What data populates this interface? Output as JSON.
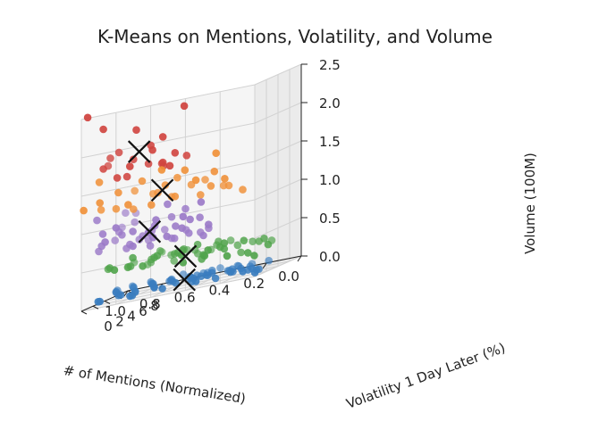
{
  "chart_data": {
    "type": "scatter",
    "projection": "3d",
    "title": "K-Means on Mentions, Volatility, and Volume",
    "xlabel": "# of Mentions (Normalized)",
    "ylabel": "Volatility 1 Day Later (%)",
    "zlabel": "Volume (100M)",
    "xlim": [
      0.0,
      1.0
    ],
    "ylim": [
      0,
      8
    ],
    "zlim": [
      0.0,
      2.5
    ],
    "x_ticks": [
      "0.0",
      "0.2",
      "0.4",
      "0.6",
      "0.8",
      "1.0"
    ],
    "y_ticks": [
      "0",
      "2",
      "4",
      "6",
      "8"
    ],
    "z_ticks": [
      "0.0",
      "0.5",
      "1.0",
      "1.5",
      "2.0",
      "2.5"
    ],
    "grid": true,
    "cluster_colors": [
      "#3a7dbf",
      "#4fa34a",
      "#9b7ac8",
      "#f0913a",
      "#d0443f"
    ],
    "series": [
      {
        "color": "#3a7dbf",
        "points": [
          [
            0.02,
            0.6,
            0.04
          ],
          [
            0.05,
            1.8,
            0.05
          ],
          [
            0.08,
            3.1,
            0.03
          ],
          [
            0.1,
            0.9,
            0.08
          ],
          [
            0.12,
            2.4,
            0.06
          ],
          [
            0.15,
            4.0,
            0.04
          ],
          [
            0.18,
            1.2,
            0.1
          ],
          [
            0.2,
            5.2,
            0.05
          ],
          [
            0.22,
            2.8,
            0.07
          ],
          [
            0.25,
            3.6,
            0.09
          ],
          [
            0.28,
            1.6,
            0.05
          ],
          [
            0.3,
            4.6,
            0.06
          ],
          [
            0.32,
            2.2,
            0.12
          ],
          [
            0.35,
            5.8,
            0.04
          ],
          [
            0.38,
            3.2,
            0.08
          ],
          [
            0.4,
            1.4,
            0.11
          ],
          [
            0.42,
            4.2,
            0.07
          ],
          [
            0.45,
            2.6,
            0.05
          ],
          [
            0.48,
            6.2,
            0.06
          ],
          [
            0.5,
            3.8,
            0.1
          ],
          [
            0.52,
            1.9,
            0.09
          ],
          [
            0.55,
            5.0,
            0.05
          ],
          [
            0.58,
            2.9,
            0.12
          ],
          [
            0.6,
            6.8,
            0.04
          ],
          [
            0.62,
            4.4,
            0.07
          ],
          [
            0.65,
            2.1,
            0.08
          ],
          [
            0.68,
            5.6,
            0.06
          ],
          [
            0.7,
            3.4,
            0.11
          ],
          [
            0.72,
            7.2,
            0.05
          ],
          [
            0.75,
            4.8,
            0.08
          ],
          [
            0.78,
            2.7,
            0.06
          ],
          [
            0.8,
            6.0,
            0.09
          ],
          [
            0.82,
            3.9,
            0.05
          ],
          [
            0.85,
            7.6,
            0.04
          ],
          [
            0.88,
            5.4,
            0.07
          ],
          [
            0.9,
            3.0,
            0.1
          ],
          [
            0.92,
            6.6,
            0.06
          ],
          [
            0.95,
            4.5,
            0.08
          ],
          [
            0.97,
            7.9,
            0.05
          ],
          [
            0.99,
            5.9,
            0.07
          ],
          [
            0.14,
            6.6,
            0.05
          ],
          [
            0.26,
            7.3,
            0.04
          ],
          [
            0.36,
            0.6,
            0.08
          ],
          [
            0.46,
            7.8,
            0.06
          ],
          [
            0.56,
            0.8,
            0.07
          ],
          [
            0.66,
            7.4,
            0.08
          ],
          [
            0.76,
            1.2,
            0.05
          ],
          [
            0.86,
            2.2,
            0.07
          ],
          [
            0.94,
            1.1,
            0.06
          ],
          [
            0.33,
            6.9,
            0.06
          ],
          [
            0.43,
            5.5,
            0.09
          ],
          [
            0.53,
            7.0,
            0.05
          ],
          [
            0.63,
            1.5,
            0.1
          ],
          [
            0.73,
            0.7,
            0.06
          ],
          [
            0.83,
            1.7,
            0.08
          ],
          [
            0.91,
            0.5,
            0.07
          ],
          [
            0.19,
            3.3,
            0.08
          ],
          [
            0.29,
            5.9,
            0.07
          ],
          [
            0.39,
            2.4,
            0.1
          ],
          [
            0.49,
            4.7,
            0.08
          ]
        ]
      },
      {
        "color": "#4fa34a",
        "points": [
          [
            0.0,
            2.3,
            0.34
          ],
          [
            0.03,
            0.8,
            0.26
          ],
          [
            0.06,
            3.4,
            0.41
          ],
          [
            0.09,
            1.5,
            0.3
          ],
          [
            0.12,
            4.3,
            0.37
          ],
          [
            0.15,
            2.6,
            0.45
          ],
          [
            0.18,
            0.6,
            0.33
          ],
          [
            0.21,
            3.9,
            0.28
          ],
          [
            0.24,
            1.9,
            0.48
          ],
          [
            0.27,
            5.1,
            0.36
          ],
          [
            0.3,
            3.0,
            0.42
          ],
          [
            0.33,
            1.2,
            0.38
          ],
          [
            0.36,
            4.5,
            0.47
          ],
          [
            0.39,
            2.5,
            0.32
          ],
          [
            0.42,
            6.0,
            0.4
          ],
          [
            0.45,
            3.6,
            0.5
          ],
          [
            0.48,
            1.7,
            0.44
          ],
          [
            0.51,
            5.4,
            0.35
          ],
          [
            0.54,
            2.9,
            0.46
          ],
          [
            0.57,
            6.7,
            0.38
          ],
          [
            0.6,
            4.1,
            0.43
          ],
          [
            0.63,
            2.0,
            0.49
          ],
          [
            0.66,
            5.8,
            0.31
          ],
          [
            0.69,
            3.3,
            0.45
          ],
          [
            0.72,
            7.1,
            0.37
          ],
          [
            0.75,
            4.6,
            0.41
          ],
          [
            0.78,
            2.3,
            0.52
          ],
          [
            0.81,
            6.3,
            0.34
          ],
          [
            0.84,
            3.7,
            0.39
          ],
          [
            0.87,
            7.5,
            0.3
          ],
          [
            0.9,
            5.0,
            0.36
          ],
          [
            0.93,
            2.8,
            0.44
          ],
          [
            0.96,
            6.9,
            0.33
          ],
          [
            0.99,
            4.3,
            0.4
          ],
          [
            0.2,
            5.6,
            0.36
          ],
          [
            0.35,
            6.3,
            0.42
          ],
          [
            0.5,
            7.4,
            0.33
          ],
          [
            0.65,
            7.8,
            0.38
          ],
          [
            0.8,
            7.9,
            0.42
          ],
          [
            0.95,
            7.6,
            0.36
          ],
          [
            0.25,
            2.2,
            0.4
          ],
          [
            0.4,
            3.1,
            0.36
          ],
          [
            0.55,
            4.0,
            0.46
          ],
          [
            0.7,
            1.6,
            0.4
          ],
          [
            0.85,
            1.2,
            0.43
          ],
          [
            0.3,
            0.9,
            0.45
          ],
          [
            0.45,
            1.1,
            0.35
          ],
          [
            0.6,
            5.7,
            0.44
          ],
          [
            0.75,
            6.1,
            0.47
          ],
          [
            0.1,
            5.9,
            0.32
          ]
        ]
      },
      {
        "color": "#9b7ac8",
        "points": [
          [
            0.3,
            1.0,
            0.78
          ],
          [
            0.35,
            1.6,
            0.64
          ],
          [
            0.4,
            0.8,
            0.9
          ],
          [
            0.45,
            2.1,
            0.7
          ],
          [
            0.5,
            1.3,
            0.84
          ],
          [
            0.55,
            2.6,
            0.66
          ],
          [
            0.6,
            0.9,
            0.98
          ],
          [
            0.65,
            1.9,
            0.74
          ],
          [
            0.7,
            2.9,
            0.62
          ],
          [
            0.75,
            1.4,
            0.88
          ],
          [
            0.8,
            2.4,
            0.7
          ],
          [
            0.85,
            3.3,
            0.64
          ],
          [
            0.9,
            1.1,
            0.82
          ],
          [
            0.95,
            2.0,
            0.76
          ],
          [
            1.0,
            3.0,
            0.68
          ],
          [
            0.42,
            3.2,
            0.66
          ],
          [
            0.52,
            3.7,
            0.72
          ],
          [
            0.62,
            4.2,
            0.64
          ],
          [
            0.72,
            3.8,
            0.8
          ],
          [
            0.82,
            4.6,
            0.7
          ],
          [
            0.92,
            4.1,
            0.86
          ],
          [
            0.98,
            5.2,
            0.74
          ],
          [
            0.88,
            5.6,
            0.92
          ],
          [
            0.96,
            6.4,
            1.05
          ],
          [
            1.0,
            7.0,
            0.86
          ],
          [
            0.94,
            7.6,
            1.0
          ],
          [
            0.78,
            5.0,
            0.66
          ],
          [
            0.68,
            4.8,
            0.76
          ],
          [
            0.58,
            3.0,
            0.94
          ],
          [
            0.48,
            2.4,
            1.02
          ],
          [
            0.38,
            1.9,
            0.88
          ],
          [
            0.33,
            0.6,
            1.1
          ],
          [
            0.43,
            0.5,
            0.96
          ],
          [
            0.53,
            0.7,
            0.74
          ],
          [
            0.63,
            0.5,
            0.84
          ],
          [
            0.73,
            0.8,
            0.7
          ],
          [
            0.83,
            0.9,
            0.98
          ],
          [
            0.93,
            1.6,
            0.92
          ],
          [
            0.99,
            2.4,
            1.1
          ],
          [
            0.86,
            2.8,
            0.84
          ],
          [
            0.76,
            3.4,
            0.76
          ],
          [
            0.66,
            2.5,
            0.88
          ],
          [
            0.56,
            1.7,
            1.14
          ],
          [
            0.46,
            1.2,
            0.8
          ],
          [
            0.36,
            2.8,
            0.7
          ]
        ]
      },
      {
        "color": "#f0913a",
        "points": [
          [
            0.15,
            2.4,
            1.12
          ],
          [
            0.2,
            0.8,
            1.34
          ],
          [
            0.25,
            3.0,
            1.2
          ],
          [
            0.28,
            1.4,
            1.45
          ],
          [
            0.32,
            2.0,
            1.26
          ],
          [
            0.36,
            0.6,
            1.4
          ],
          [
            0.4,
            2.6,
            1.16
          ],
          [
            0.44,
            1.1,
            1.55
          ],
          [
            0.48,
            3.4,
            1.3
          ],
          [
            0.52,
            1.8,
            1.22
          ],
          [
            0.56,
            0.7,
            1.62
          ],
          [
            0.6,
            2.5,
            1.38
          ],
          [
            0.64,
            1.3,
            1.18
          ],
          [
            0.68,
            3.6,
            1.28
          ],
          [
            0.72,
            2.1,
            1.5
          ],
          [
            0.76,
            0.9,
            1.25
          ],
          [
            0.8,
            3.0,
            1.14
          ],
          [
            0.84,
            1.6,
            1.42
          ],
          [
            0.88,
            2.4,
            1.2
          ],
          [
            0.92,
            0.8,
            1.35
          ],
          [
            0.96,
            1.9,
            1.6
          ],
          [
            1.0,
            0.4,
            1.3
          ],
          [
            0.62,
            4.2,
            1.18
          ],
          [
            0.74,
            4.6,
            1.26
          ],
          [
            0.86,
            5.0,
            1.34
          ],
          [
            0.98,
            2.8,
            1.22
          ],
          [
            0.3,
            3.6,
            1.2
          ],
          [
            0.42,
            4.0,
            1.32
          ],
          [
            0.24,
            0.5,
            1.7
          ],
          [
            0.54,
            2.8,
            1.44
          ]
        ]
      },
      {
        "color": "#d0443f",
        "points": [
          [
            0.42,
            0.4,
            2.4
          ],
          [
            0.55,
            0.6,
            2.05
          ],
          [
            0.62,
            0.9,
            1.9
          ],
          [
            0.5,
            1.2,
            1.8
          ],
          [
            0.46,
            2.0,
            1.72
          ],
          [
            0.58,
            1.5,
            1.7
          ],
          [
            0.66,
            1.8,
            1.95
          ],
          [
            0.72,
            1.1,
            2.2
          ],
          [
            0.78,
            2.4,
            1.8
          ],
          [
            0.84,
            1.4,
            1.62
          ],
          [
            0.88,
            2.9,
            1.92
          ],
          [
            0.7,
            2.6,
            1.7
          ],
          [
            0.6,
            2.2,
            1.64
          ],
          [
            0.52,
            0.9,
            1.65
          ],
          [
            0.74,
            0.6,
            1.75
          ],
          [
            0.8,
            1.9,
            1.6
          ],
          [
            0.64,
            3.1,
            1.66
          ],
          [
            0.9,
            0.8,
            2.3
          ],
          [
            0.94,
            2.0,
            1.76
          ],
          [
            0.96,
            3.8,
            1.85
          ],
          [
            0.98,
            0.5,
            2.5
          ],
          [
            1.0,
            4.6,
            1.74
          ]
        ]
      }
    ],
    "centroids": [
      [
        0.52,
        3.4,
        0.08
      ],
      [
        0.5,
        3.0,
        0.39
      ],
      [
        0.68,
        2.2,
        0.82
      ],
      [
        0.6,
        2.0,
        1.33
      ],
      [
        0.72,
        1.6,
        1.9
      ]
    ]
  }
}
